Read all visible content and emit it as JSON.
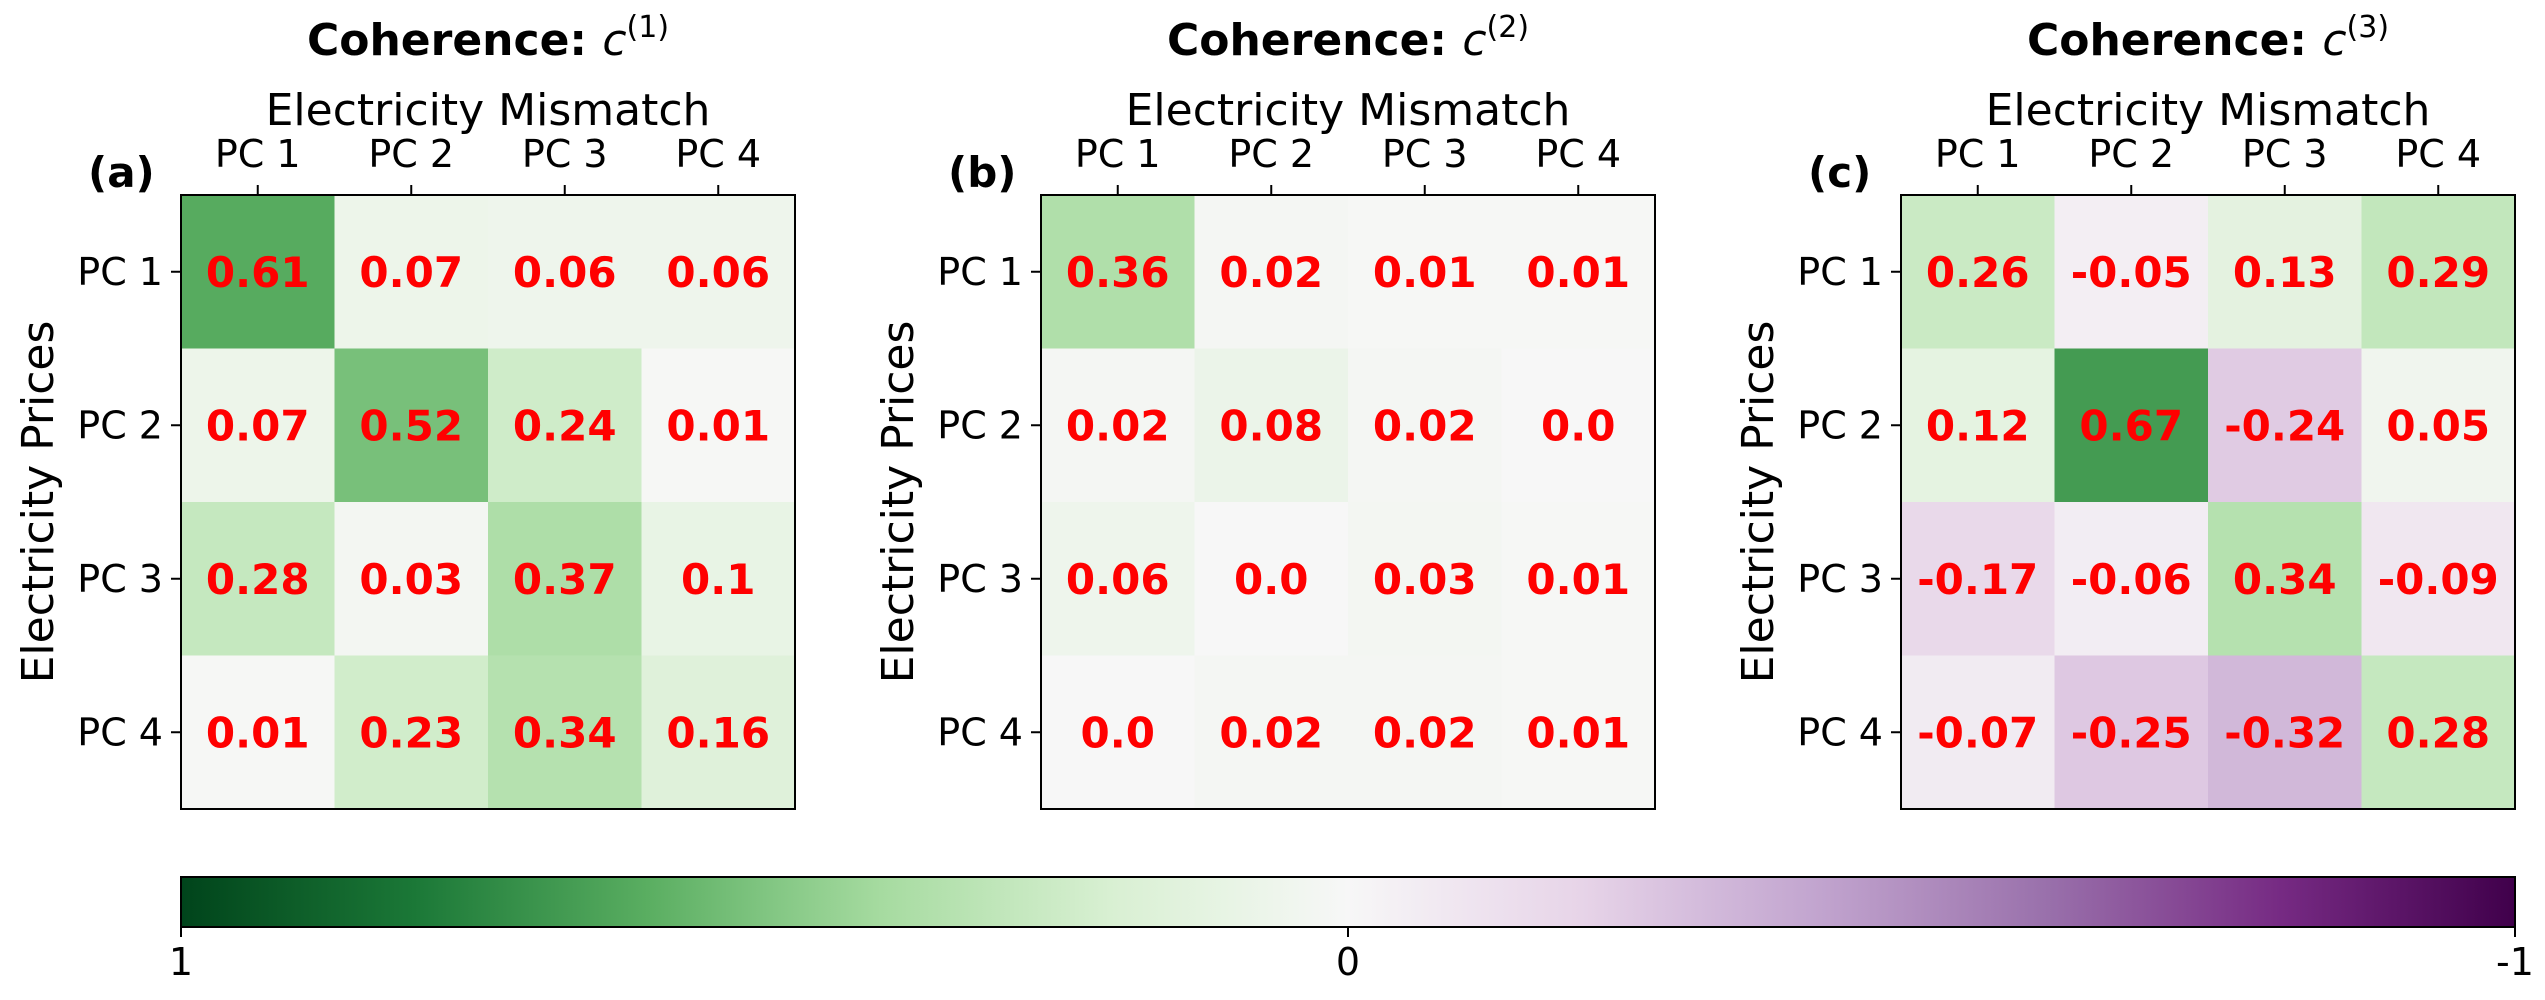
{
  "colors": {
    "value_label": "#ff0000",
    "colormap": "PRGn",
    "frame": "#000000"
  },
  "colorbar": {
    "min_label": "1",
    "mid_label": "0",
    "max_label": "-1",
    "range": [
      1,
      -1
    ]
  },
  "chart_data": [
    {
      "type": "heatmap",
      "panel_label": "(a)",
      "title_bold": "Coherence:",
      "title_math_var": "c",
      "title_math_sup": "(1)",
      "xlabel": "Electricity Mismatch",
      "ylabel": "Electricity Prices",
      "x_categories": [
        "PC 1",
        "PC 2",
        "PC 3",
        "PC 4"
      ],
      "y_categories": [
        "PC 1",
        "PC 2",
        "PC 3",
        "PC 4"
      ],
      "values": [
        [
          0.61,
          0.07,
          0.06,
          0.06
        ],
        [
          0.07,
          0.52,
          0.24,
          0.01
        ],
        [
          0.28,
          0.03,
          0.37,
          0.1
        ],
        [
          0.01,
          0.23,
          0.34,
          0.16
        ]
      ],
      "value_labels": [
        [
          "0.61",
          "0.07",
          "0.06",
          "0.06"
        ],
        [
          "0.07",
          "0.52",
          "0.24",
          "0.01"
        ],
        [
          "0.28",
          "0.03",
          "0.37",
          "0.1"
        ],
        [
          "0.01",
          "0.23",
          "0.34",
          "0.16"
        ]
      ]
    },
    {
      "type": "heatmap",
      "panel_label": "(b)",
      "title_bold": "Coherence:",
      "title_math_var": "c",
      "title_math_sup": "(2)",
      "xlabel": "Electricity Mismatch",
      "ylabel": "Electricity Prices",
      "x_categories": [
        "PC 1",
        "PC 2",
        "PC 3",
        "PC 4"
      ],
      "y_categories": [
        "PC 1",
        "PC 2",
        "PC 3",
        "PC 4"
      ],
      "values": [
        [
          0.36,
          0.02,
          0.01,
          0.01
        ],
        [
          0.02,
          0.08,
          0.02,
          0.0
        ],
        [
          0.06,
          0.0,
          0.03,
          0.01
        ],
        [
          0.0,
          0.02,
          0.02,
          0.01
        ]
      ],
      "value_labels": [
        [
          "0.36",
          "0.02",
          "0.01",
          "0.01"
        ],
        [
          "0.02",
          "0.08",
          "0.02",
          "0.0"
        ],
        [
          "0.06",
          "0.0",
          "0.03",
          "0.01"
        ],
        [
          "0.0",
          "0.02",
          "0.02",
          "0.01"
        ]
      ]
    },
    {
      "type": "heatmap",
      "panel_label": "(c)",
      "title_bold": "Coherence:",
      "title_math_var": "c",
      "title_math_sup": "(3)",
      "xlabel": "Electricity Mismatch",
      "ylabel": "Electricity Prices",
      "x_categories": [
        "PC 1",
        "PC 2",
        "PC 3",
        "PC 4"
      ],
      "y_categories": [
        "PC 1",
        "PC 2",
        "PC 3",
        "PC 4"
      ],
      "values": [
        [
          0.26,
          -0.05,
          0.13,
          0.29
        ],
        [
          0.12,
          0.67,
          -0.24,
          0.05
        ],
        [
          -0.17,
          -0.06,
          0.34,
          -0.09
        ],
        [
          -0.07,
          -0.25,
          -0.32,
          0.28
        ]
      ],
      "value_labels": [
        [
          "0.26",
          "-0.05",
          "0.13",
          "0.29"
        ],
        [
          "0.12",
          "0.67",
          "-0.24",
          "0.05"
        ],
        [
          "-0.17",
          "-0.06",
          "0.34",
          "-0.09"
        ],
        [
          "-0.07",
          "-0.25",
          "-0.32",
          "0.28"
        ]
      ]
    }
  ]
}
